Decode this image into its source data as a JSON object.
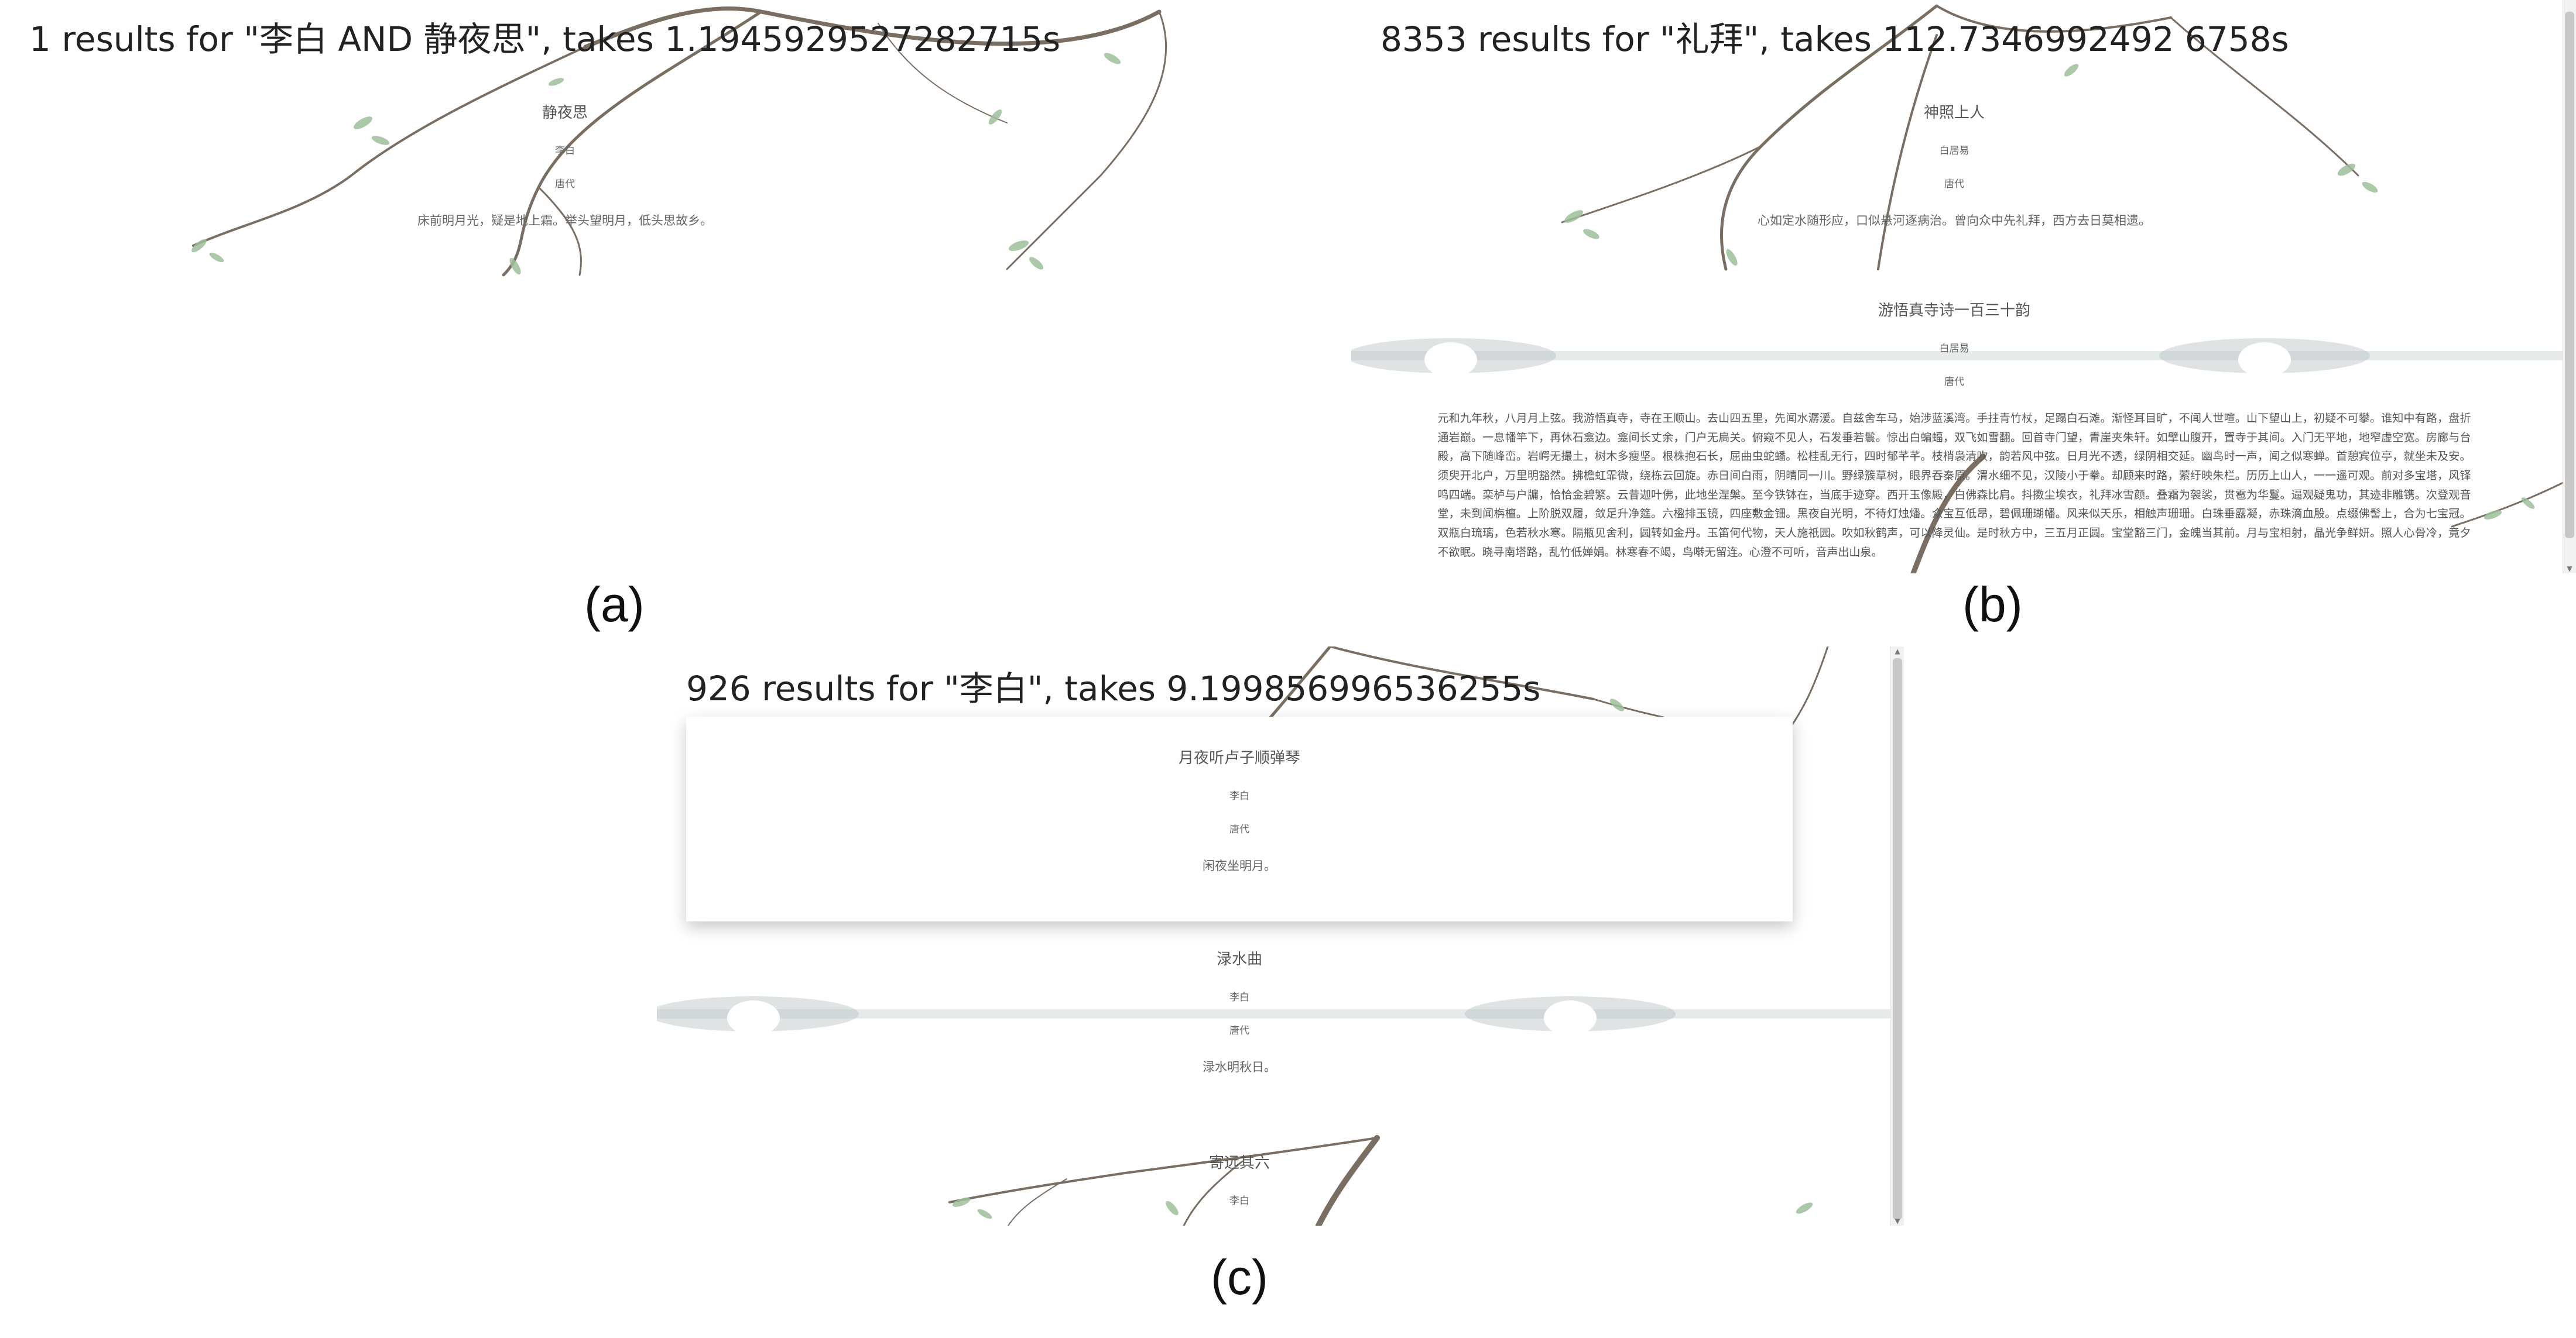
{
  "panels": {
    "a": {
      "header": "1 results for \"李白 AND 静夜思\", takes 1.1945929527282715s",
      "poems": [
        {
          "title": "静夜思",
          "author": "李白",
          "dynasty": "唐代",
          "content": "床前明月光，疑是地上霜。举头望明月，低头思故乡。"
        }
      ]
    },
    "b": {
      "header": "8353 results for \"礼拜\", takes 112.7346992492 6758s",
      "poems": [
        {
          "title": "神照上人",
          "author": "白居易",
          "dynasty": "唐代",
          "content": "心如定水随形应，口似悬河逐病治。曾向众中先礼拜，西方去日莫相遗。"
        },
        {
          "title": "游悟真寺诗一百三十韵",
          "author": "白居易",
          "dynasty": "唐代",
          "content": "元和九年秋，八月月上弦。我游悟真寺，寺在王顺山。去山四五里，先闻水潺湲。自兹舍车马，始涉蓝溪湾。手拄青竹杖，足蹋白石滩。渐怪耳目旷，不闻人世喧。山下望山上，初疑不可攀。谁知中有路，盘折通岩巅。一息幡竿下，再休石龛边。龛间长丈余，门户无扃关。俯窥不见人，石发垂若鬟。惊出白蝙蝠，双飞如雪翻。回首寺门望，青崖夹朱轩。如擘山腹开，置寺于其间。入门无平地，地窄虚空宽。房廊与台殿，高下随峰峦。岩崿无撮土，树木多瘦坚。根株抱石长，屈曲虫蛇蟠。松桂乱无行，四时郁芊芊。枝梢袅清吹，韵若风中弦。日月光不透，绿阴相交延。幽鸟时一声，闻之似寒蝉。首憩宾位亭，就坐未及安。须臾开北户，万里明豁然。拂檐虹霏微，绕栋云回旋。赤日间白雨，阴晴同一川。野绿簇草树，眼界吞秦原。渭水细不见，汉陵小于拳。却顾来时路，萦纡映朱栏。历历上山人，一一遥可观。前对多宝塔，风铎鸣四端。栾栌与户牖，恰恰金碧繁。云昔迦叶佛，此地坐涅槃。至今铁钵在，当底手迹穿。西开玉像殿，白佛森比肩。抖擞尘埃衣，礼拜冰雪颜。叠霜为袈裟，贯雹为华鬘。逼观疑鬼功，其迹非雕镌。次登观音堂，未到闻栴檀。上阶脱双履，敛足升净筵。六楹排玉镜，四座敷金钿。黑夜自光明，不待灯烛燔。众宝互低昂，碧佩珊瑚幡。风来似天乐，相触声珊珊。白珠垂露凝，赤珠滴血殷。点缀佛髻上，合为七宝冠。双瓶白琉璃，色若秋水寒。隔瓶见舍利，圆转如金丹。玉笛何代物，天人施祇园。吹如秋鹤声，可以降灵仙。是时秋方中，三五月正圆。宝堂豁三门，金魄当其前。月与宝相射，晶光争鲜妍。照人心骨冷，竟夕不欲眠。晓寻南塔路，乱竹低婵娟。林寒春不竭，鸟啭无留连。心澄不可听，音声出山泉。"
        }
      ]
    },
    "c": {
      "header": "926 results for \"李白\", takes 9.199856996536255s",
      "poems": [
        {
          "title": "月夜听卢子顺弹琴",
          "author": "李白",
          "dynasty": "唐代",
          "content": "闲夜坐明月。"
        },
        {
          "title": "渌水曲",
          "author": "李白",
          "dynasty": "唐代",
          "content": "渌水明秋日。"
        },
        {
          "title": "寄远其六",
          "author": "李白",
          "dynasty": "",
          "content": ""
        }
      ]
    }
  },
  "captions": {
    "a": "(a)",
    "b": "(b)",
    "c": "(c)"
  },
  "scroll_arrows": {
    "up": "▲",
    "down": "▼"
  },
  "colors": {
    "background": "#ffffff",
    "header_text": "#222222",
    "poem_text": "#666666",
    "branch": "#7a6e62",
    "leaf": "#9cbf9a",
    "mist": "#b8c2c4"
  }
}
